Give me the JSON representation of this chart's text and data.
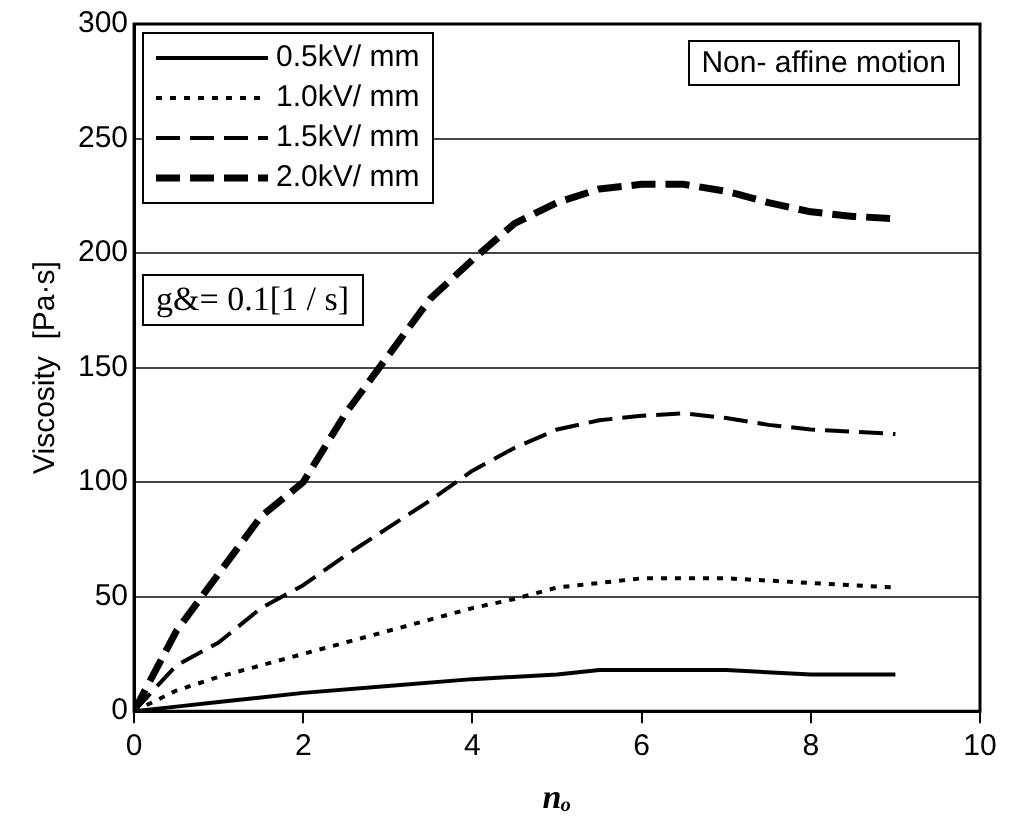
{
  "chart_data": {
    "type": "line",
    "xlabel": "nₒ",
    "ylabel": "Viscosity  [Pa·s]",
    "xlim": [
      0,
      10
    ],
    "xticks": [
      0,
      2,
      4,
      6,
      8,
      10
    ],
    "ylim": [
      0,
      300
    ],
    "yticks": [
      0,
      50,
      100,
      150,
      200,
      250,
      300
    ],
    "grid": "y",
    "legend": "top left",
    "marker": "none",
    "annotations": [
      "Non- affine motion",
      "g&= 0.1[1 / s]"
    ],
    "series": [
      {
        "name": "0.5kV/ mm",
        "color": "#000000",
        "line_style": "solid",
        "x": [
          0,
          0.5,
          1,
          1.5,
          2,
          3,
          4,
          5,
          5.5,
          6,
          7,
          8,
          9
        ],
        "values": [
          0,
          2,
          4,
          6,
          8,
          11,
          14,
          16,
          18,
          18,
          18,
          16,
          16
        ]
      },
      {
        "name": "1.0kV/ mm",
        "color": "#000000",
        "line_style": "dotted",
        "x": [
          0,
          0.5,
          1,
          1.5,
          2,
          2.5,
          3,
          3.5,
          4,
          4.5,
          5,
          5.5,
          6,
          6.5,
          7,
          7.5,
          8,
          8.5,
          9
        ],
        "values": [
          0,
          9,
          15,
          20,
          25,
          30,
          35,
          40,
          45,
          49,
          54,
          56,
          58,
          58,
          58,
          57,
          56,
          55,
          54
        ]
      },
      {
        "name": "1.5kV/ mm",
        "color": "#000000",
        "line_style": "dashed",
        "x": [
          0,
          0.5,
          1,
          1.5,
          2,
          2.5,
          3,
          3.5,
          4,
          4.5,
          5,
          5.5,
          6,
          6.5,
          7,
          7.5,
          8,
          8.5,
          9
        ],
        "values": [
          0,
          20,
          30,
          45,
          55,
          68,
          80,
          92,
          105,
          115,
          123,
          127,
          129,
          130,
          128,
          125,
          123,
          122,
          121
        ]
      },
      {
        "name": "2.0kV/ mm",
        "color": "#000000",
        "line_style": "dashed",
        "x": [
          0,
          0.5,
          1,
          1.5,
          2,
          2.5,
          3,
          3.5,
          4,
          4.5,
          5,
          5.5,
          6,
          6.5,
          7,
          7.5,
          8,
          8.5,
          9
        ],
        "values": [
          0,
          35,
          60,
          85,
          100,
          130,
          155,
          180,
          197,
          213,
          222,
          228,
          230,
          230,
          227,
          222,
          218,
          216,
          215
        ]
      }
    ]
  }
}
